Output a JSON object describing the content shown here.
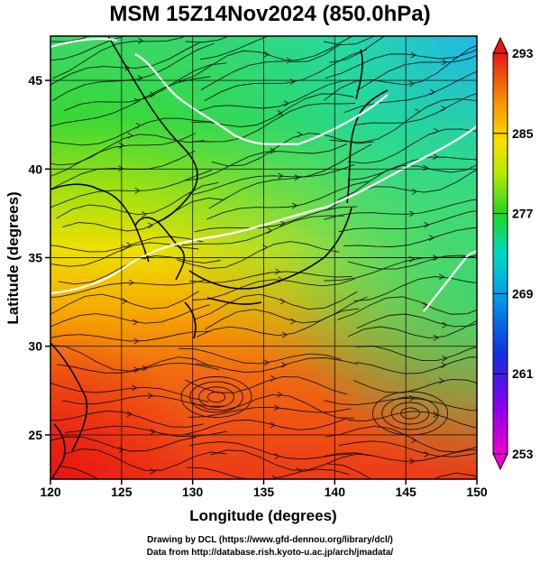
{
  "title": "MSM 15Z14Nov2024 (850.0hPa)",
  "chart_data": {
    "type": "heatmap",
    "title": "MSM 15Z14Nov2024 (850.0hPa)",
    "xlabel": "Longitude (degrees)",
    "ylabel": "Latitude  (degrees)",
    "xlim": [
      120,
      150
    ],
    "ylim": [
      22.5,
      47.5
    ],
    "x_ticks": [
      "120",
      "125",
      "130",
      "135",
      "140",
      "145",
      "150"
    ],
    "y_ticks": [
      "25",
      "30",
      "35",
      "40",
      "45"
    ],
    "x_tick_values": [
      120,
      125,
      130,
      135,
      140,
      145,
      150
    ],
    "y_tick_values": [
      25,
      30,
      35,
      40,
      45
    ],
    "grid": true,
    "overlay": "streamlines",
    "colorbar": {
      "min": 253,
      "max": 293,
      "labels": [
        "293",
        "285",
        "277",
        "269",
        "261",
        "253"
      ],
      "label_values": [
        293,
        285,
        277,
        269,
        261,
        253
      ],
      "colors": [
        "#ee00cc",
        "#8800ee",
        "#1030e0",
        "#00a0e8",
        "#00d8c0",
        "#20d820",
        "#b8e800",
        "#f8e000",
        "#f89000",
        "#f03818",
        "#e81818"
      ]
    }
  },
  "credits": {
    "line1": "Drawing by DCL (https://www.gfd-dennou.org/library/dcl/)",
    "line2": "Data from http://database.rish.kyoto-u.ac.jp/arch/jmadata/"
  }
}
